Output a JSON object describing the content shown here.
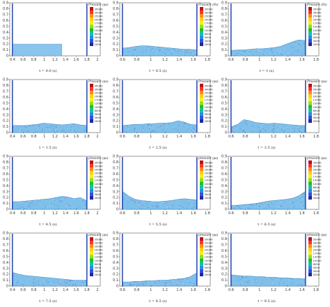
{
  "legend": {
    "values": [
      "35000",
      "30000",
      "25000",
      "20000",
      "17000",
      "13000",
      "10000",
      "8000",
      "5000",
      "3000",
      "2000"
    ],
    "colors": [
      "#c01010",
      "#ff3030",
      "#ff8a10",
      "#ffd000",
      "#f0f020",
      "#90e020",
      "#20c020",
      "#10c0b0",
      "#2090e0",
      "#3050e0",
      "#2028a0"
    ]
  },
  "x_ticks_wide": [
    "0.4",
    "0.6",
    "0.8",
    "1",
    "1.2",
    "1.4",
    "1.6",
    "1.8",
    "2"
  ],
  "x_ticks_narrow": [
    "0.6",
    "0.8",
    "1",
    "1.2",
    "1.4",
    "1.6",
    "1.8"
  ],
  "y_ticks": [
    "0",
    "0.1",
    "0.2",
    "0.3",
    "0.4",
    "0.5",
    "0.6",
    "0.7",
    "0.8",
    "0.9"
  ],
  "panels": [
    {
      "caption": "t = 0.0 (s)",
      "legend_title": "Pressure (pa)",
      "profile": [
        0.2,
        0.2,
        0.2,
        0.2,
        0.2,
        0.2,
        0.2,
        0.2,
        0.2,
        0.0,
        0.0,
        0.0,
        0.0
      ],
      "ticks": "wide",
      "block": true
    },
    {
      "caption": "t = 0.5 (s)",
      "legend_title": "Pressure (Pa)",
      "profile": [
        0.13,
        0.14,
        0.16,
        0.17,
        0.17,
        0.16,
        0.15,
        0.14,
        0.13,
        0.12,
        0.11,
        0.11,
        0.1
      ],
      "ticks": "narrow"
    },
    {
      "caption": "t = 1 (s)",
      "legend_title": "Pressure (Pa)",
      "profile": [
        0.09,
        0.1,
        0.1,
        0.11,
        0.12,
        0.12,
        0.13,
        0.14,
        0.16,
        0.2,
        0.24,
        0.27,
        0.26
      ],
      "ticks": "narrow"
    },
    {
      "caption": "t = 1.5 (s)",
      "legend_title": "Pressure (pa)",
      "profile": [
        0.12,
        0.12,
        0.12,
        0.13,
        0.14,
        0.16,
        0.15,
        0.14,
        0.13,
        0.14,
        0.15,
        0.13,
        0.12
      ],
      "ticks": "wide"
    },
    {
      "caption": "t = 2.5 (s)",
      "legend_title": "Pressure (pa)",
      "profile": [
        0.12,
        0.13,
        0.14,
        0.14,
        0.15,
        0.15,
        0.16,
        0.16,
        0.17,
        0.2,
        0.18,
        0.14,
        0.13
      ],
      "ticks": "narrow"
    },
    {
      "caption": "t = 3.5 (s)",
      "legend_title": "Pressure (pa)",
      "profile": [
        0.1,
        0.14,
        0.22,
        0.2,
        0.17,
        0.16,
        0.15,
        0.16,
        0.15,
        0.14,
        0.13,
        0.12,
        0.12
      ],
      "ticks": "narrow"
    },
    {
      "caption": "t = 4.5 (s)",
      "legend_title": "pressure (pa)",
      "profile": [
        0.13,
        0.13,
        0.14,
        0.15,
        0.16,
        0.17,
        0.18,
        0.2,
        0.22,
        0.21,
        0.18,
        0.2,
        0.15
      ],
      "ticks": "wide"
    },
    {
      "caption": "t = 5.5 (s)",
      "legend_title": "pressure (pa)",
      "profile": [
        0.3,
        0.22,
        0.17,
        0.15,
        0.14,
        0.13,
        0.13,
        0.14,
        0.15,
        0.17,
        0.18,
        0.17,
        0.16
      ],
      "ticks": "narrow"
    },
    {
      "caption": "t = 6.5 (s)",
      "legend_title": "pressure (pa)",
      "profile": [
        0.07,
        0.07,
        0.08,
        0.09,
        0.1,
        0.12,
        0.14,
        0.15,
        0.16,
        0.17,
        0.19,
        0.23,
        0.3
      ],
      "ticks": "narrow"
    },
    {
      "caption": "t = 7.5 (s)",
      "legend_title": "pressure (pa)",
      "profile": [
        0.23,
        0.2,
        0.18,
        0.17,
        0.16,
        0.15,
        0.14,
        0.13,
        0.12,
        0.11,
        0.1,
        0.1,
        0.1
      ],
      "ticks": "wide"
    },
    {
      "caption": "t = 8.5 (s)",
      "legend_title": "pressure (pa)",
      "profile": [
        0.07,
        0.07,
        0.08,
        0.08,
        0.09,
        0.09,
        0.1,
        0.1,
        0.11,
        0.12,
        0.13,
        0.16,
        0.22
      ],
      "ticks": "narrow"
    },
    {
      "caption": "t = 9.5 (s)",
      "legend_title": "pressure (pa)",
      "profile": [
        0.19,
        0.18,
        0.17,
        0.17,
        0.16,
        0.16,
        0.15,
        0.15,
        0.14,
        0.14,
        0.13,
        0.13,
        0.12
      ],
      "ticks": "narrow"
    }
  ]
}
